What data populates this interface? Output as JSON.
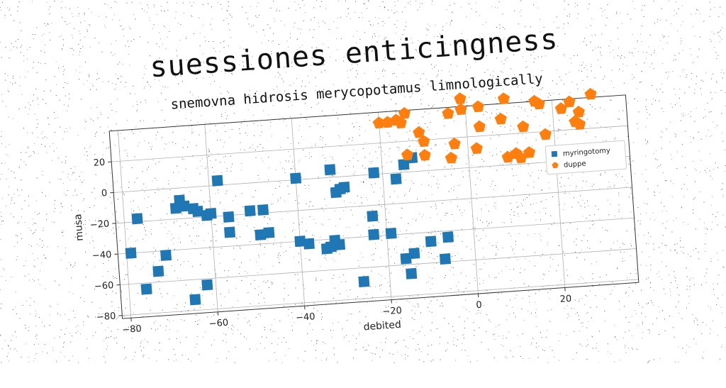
{
  "chart_data": {
    "type": "scatter",
    "title": "suessiones enticingness",
    "subtitle": "snemovna hidrosis merycopotamus limnologically",
    "xlabel": "debited",
    "ylabel": "musa",
    "xlim": [
      -82,
      37
    ],
    "ylim": [
      -82,
      40
    ],
    "xticks": [
      -80,
      -60,
      -40,
      -20,
      0,
      20
    ],
    "yticks": [
      -80,
      -60,
      -40,
      -20,
      0,
      20
    ],
    "grid": true,
    "legend_position": "right",
    "series": [
      {
        "name": "myringotomy",
        "marker": "square",
        "color": "#1f77b4",
        "points": [
          [
            -77,
            -18
          ],
          [
            -79,
            -40
          ],
          [
            -76,
            -64
          ],
          [
            -73,
            -53
          ],
          [
            -71,
            -43
          ],
          [
            -68,
            -13
          ],
          [
            -67,
            -8
          ],
          [
            -66,
            -12
          ],
          [
            -65,
            -73
          ],
          [
            -64,
            -14
          ],
          [
            -63,
            -16
          ],
          [
            -62,
            -64
          ],
          [
            -61,
            -19
          ],
          [
            -60,
            -18
          ],
          [
            -58,
            3
          ],
          [
            -56,
            -21
          ],
          [
            -56,
            -31
          ],
          [
            -51,
            -18
          ],
          [
            -49,
            -34
          ],
          [
            -48,
            -18
          ],
          [
            -47,
            -33
          ],
          [
            -40,
            1
          ],
          [
            -40,
            -40
          ],
          [
            -38,
            -42
          ],
          [
            -34,
            -46
          ],
          [
            -33,
            -45
          ],
          [
            -32,
            5
          ],
          [
            -32,
            -41
          ],
          [
            -31,
            -10
          ],
          [
            -31,
            -44
          ],
          [
            -30,
            -8
          ],
          [
            -29,
            -7
          ],
          [
            -26,
            -69
          ],
          [
            -23,
            -27
          ],
          [
            -23,
            -39
          ],
          [
            -22,
            1
          ],
          [
            -19,
            -39
          ],
          [
            -17,
            -4
          ],
          [
            -16,
            -56
          ],
          [
            -15,
            -66
          ],
          [
            -15,
            5
          ],
          [
            -14,
            -53
          ],
          [
            -13,
            9
          ],
          [
            -10,
            -46
          ],
          [
            -7,
            -58
          ],
          [
            -6,
            -44
          ]
        ]
      },
      {
        "name": "duppe",
        "marker": "pentagon",
        "color": "#ff7f0e",
        "points": [
          [
            -20,
            33
          ],
          [
            -18,
            33
          ],
          [
            -16,
            34
          ],
          [
            -15,
            32
          ],
          [
            -14,
            38
          ],
          [
            -14,
            11
          ],
          [
            -11,
            25
          ],
          [
            -10,
            10
          ],
          [
            -10,
            19
          ],
          [
            -4,
            36
          ],
          [
            -4,
            7
          ],
          [
            -3,
            16
          ],
          [
            -1,
            38
          ],
          [
            -1,
            45
          ],
          [
            2,
            12
          ],
          [
            3,
            39
          ],
          [
            3,
            26
          ],
          [
            8,
            30
          ],
          [
            9,
            5
          ],
          [
            9,
            43
          ],
          [
            11,
            7
          ],
          [
            12,
            4
          ],
          [
            13,
            24
          ],
          [
            14,
            7
          ],
          [
            16,
            40
          ],
          [
            17,
            38
          ],
          [
            18,
            18
          ],
          [
            22,
            34
          ],
          [
            24,
            38
          ],
          [
            25,
            25
          ],
          [
            26,
            31
          ],
          [
            26,
            23
          ],
          [
            29,
            42
          ]
        ]
      }
    ]
  }
}
